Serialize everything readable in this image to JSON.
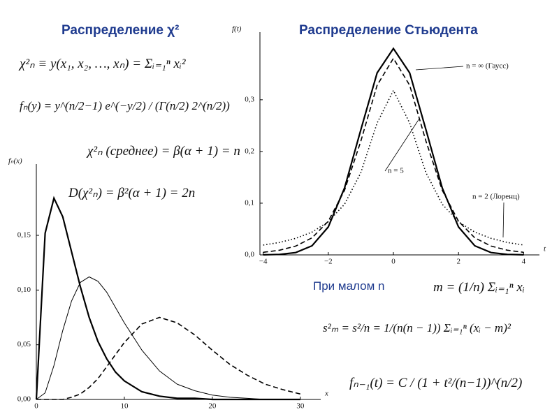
{
  "headings": [
    "Распределение χ²",
    "Распределение Стьюдента"
  ],
  "formulas": [
    "χ²ₙ ≡ y(x₁, x₂, …, xₙ) = Σᵢ₌₁ⁿ xᵢ²",
    "fₙ(y) = y^(n/2−1) e^(−y/2) / (Γ(n/2) 2^(n/2))",
    "χ²ₙ (среднее) = β(α + 1) = n",
    "D(χ²ₙ) = β²(α + 1) = 2n",
    "m = (1/n) Σᵢ₌₁ⁿ xᵢ",
    "s²ₘ = s²/n = 1/(n(n − 1)) Σᵢ₌₁ⁿ (xᵢ − m)²",
    "fₙ₋₁(t) = C / (1 + t²/(n−1))^(n/2)"
  ],
  "note": "При малом n",
  "chart_data": [
    {
      "type": "line",
      "x_label": "x",
      "y_label": "fₙ(x)",
      "x": [
        0,
        1,
        2,
        3,
        4,
        5,
        6,
        7,
        8,
        9,
        10,
        12,
        14,
        16,
        18,
        20,
        22,
        24,
        26,
        28,
        30
      ],
      "series": [
        {
          "color": "#000000",
          "dash": "solid",
          "values": [
            0,
            0.152,
            0.184,
            0.167,
            0.135,
            0.103,
            0.075,
            0.053,
            0.037,
            0.025,
            0.017,
            0.007,
            0.003,
            0.001,
            0.001,
            0,
            0,
            0,
            0,
            0,
            0
          ]
        },
        {
          "color": "#000000",
          "dash": "thin",
          "values": [
            0,
            0.006,
            0.031,
            0.063,
            0.09,
            0.107,
            0.112,
            0.108,
            0.098,
            0.084,
            0.07,
            0.045,
            0.026,
            0.014,
            0.008,
            0.004,
            0.002,
            0.001,
            0,
            0,
            0
          ]
        },
        {
          "color": "#000000",
          "dash": "dashed",
          "values": [
            0,
            0,
            0,
            0,
            0.002,
            0.005,
            0.011,
            0.019,
            0.03,
            0.041,
            0.052,
            0.069,
            0.075,
            0.07,
            0.059,
            0.045,
            0.032,
            0.022,
            0.014,
            0.009,
            0.005
          ]
        }
      ],
      "xlim": [
        0,
        32
      ],
      "ylim": [
        0,
        0.21
      ],
      "xticks": [
        0,
        10,
        20,
        30
      ],
      "yticks": [
        {
          "value": 0,
          "label": "0,00"
        },
        {
          "value": 0.05,
          "label": "0,05"
        },
        {
          "value": 0.1,
          "label": "0,10"
        },
        {
          "value": 0.15,
          "label": "0,15"
        }
      ]
    },
    {
      "type": "line",
      "x_label": "t",
      "y_label": "f(t)",
      "x": [
        -4,
        -3.5,
        -3,
        -2.5,
        -2,
        -1.5,
        -1,
        -0.5,
        0,
        0.5,
        1,
        1.5,
        2,
        2.5,
        3,
        3.5,
        4
      ],
      "series": [
        {
          "name": "n = ∞ (Гаусс)",
          "color": "#000000",
          "dash": "solid",
          "values": [
            0.0001,
            0.0009,
            0.0044,
            0.0175,
            0.054,
            0.1295,
            0.242,
            0.352,
            0.399,
            0.352,
            0.242,
            0.1295,
            0.054,
            0.0175,
            0.0044,
            0.0009,
            0.0001
          ]
        },
        {
          "name": "n = 5",
          "color": "#000000",
          "dash": "dashed",
          "values": [
            0.005,
            0.009,
            0.017,
            0.033,
            0.065,
            0.125,
            0.22,
            0.328,
            0.38,
            0.328,
            0.22,
            0.125,
            0.065,
            0.033,
            0.017,
            0.009,
            0.005
          ]
        },
        {
          "name": "n = 2 (Лоренц)",
          "color": "#000000",
          "dash": "dotted",
          "values": [
            0.019,
            0.024,
            0.032,
            0.044,
            0.064,
            0.098,
            0.159,
            0.255,
            0.318,
            0.255,
            0.159,
            0.098,
            0.064,
            0.044,
            0.032,
            0.024,
            0.019
          ]
        }
      ],
      "xlim": [
        -4.1,
        4.4
      ],
      "ylim": [
        0,
        0.42
      ],
      "xticks": [
        {
          "value": -4,
          "label": "−4"
        },
        {
          "value": -2,
          "label": "−2"
        },
        0,
        2,
        4
      ],
      "yticks": [
        {
          "value": 0,
          "label": "0,0"
        },
        {
          "value": 0.1,
          "label": "0,1"
        },
        {
          "value": 0.2,
          "label": "0,2"
        },
        {
          "value": 0.3,
          "label": "0,3"
        }
      ]
    }
  ]
}
